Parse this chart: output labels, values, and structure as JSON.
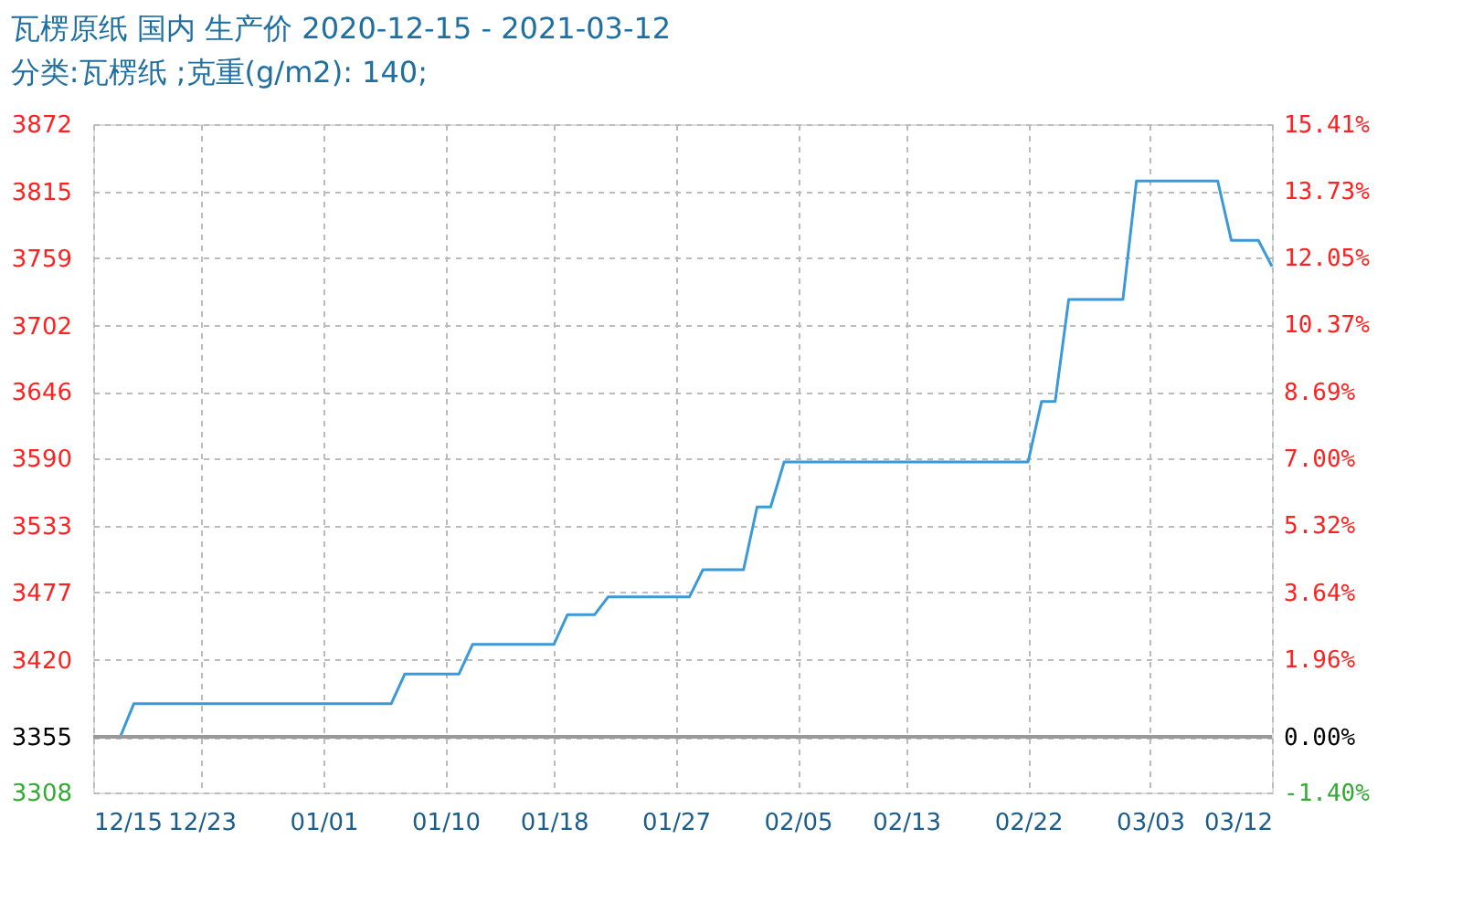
{
  "chart_data": {
    "type": "line",
    "title": "瓦楞原纸 国内 生产价 2020-12-15 - 2021-03-12",
    "subtitle": "分类:瓦楞纸 ;克重(g/m2): 140;",
    "x": [
      "2020-12-15",
      "2020-12-17",
      "2020-12-18",
      "2021-01-06",
      "2021-01-07",
      "2021-01-11",
      "2021-01-12",
      "2021-01-18",
      "2021-01-19",
      "2021-01-21",
      "2021-01-22",
      "2021-01-28",
      "2021-01-29",
      "2021-02-01",
      "2021-02-02",
      "2021-02-03",
      "2021-02-04",
      "2021-02-22",
      "2021-02-23",
      "2021-02-24",
      "2021-02-25",
      "2021-03-01",
      "2021-03-02",
      "2021-03-08",
      "2021-03-09",
      "2021-03-11",
      "2021-03-12"
    ],
    "series": [
      {
        "color": "#3a9ad9",
        "values": [
          3355,
          3355,
          3383,
          3383,
          3408,
          3408,
          3433,
          3433,
          3458,
          3458,
          3473,
          3473,
          3496,
          3496,
          3549,
          3549,
          3587,
          3587,
          3638,
          3638,
          3724,
          3724,
          3824,
          3824,
          3774,
          3774,
          3752
        ]
      }
    ],
    "xlim": [
      "2020-12-15",
      "2021-03-12"
    ],
    "xticks": [
      {
        "value": "2020-12-15",
        "label": "12/15"
      },
      {
        "value": "2020-12-23",
        "label": "12/23"
      },
      {
        "value": "2021-01-01",
        "label": "01/01"
      },
      {
        "value": "2021-01-10",
        "label": "01/10"
      },
      {
        "value": "2021-01-18",
        "label": "01/18"
      },
      {
        "value": "2021-01-27",
        "label": "01/27"
      },
      {
        "value": "2021-02-05",
        "label": "02/05"
      },
      {
        "value": "2021-02-13",
        "label": "02/13"
      },
      {
        "value": "2021-02-22",
        "label": "02/22"
      },
      {
        "value": "2021-03-03",
        "label": "03/03"
      },
      {
        "value": "2021-03-12",
        "label": "03/12"
      }
    ],
    "ylim": [
      3308,
      3872
    ],
    "yticks": [
      3308,
      3355,
      3420,
      3477,
      3533,
      3590,
      3646,
      3702,
      3759,
      3815,
      3872
    ],
    "y2lim": [
      -1.4,
      15.41
    ],
    "y2ticks": [
      {
        "value": -1.4,
        "label": "-1.40%"
      },
      {
        "value": 0,
        "label": "0.00%"
      },
      {
        "value": 1.96,
        "label": "1.96%"
      },
      {
        "value": 3.64,
        "label": "3.64%"
      },
      {
        "value": 5.32,
        "label": "5.32%"
      },
      {
        "value": 7.0,
        "label": "7.00%"
      },
      {
        "value": 8.69,
        "label": "8.69%"
      },
      {
        "value": 10.37,
        "label": "10.37%"
      },
      {
        "value": 12.05,
        "label": "12.05%"
      },
      {
        "value": 13.73,
        "label": "13.73%"
      },
      {
        "value": 15.41,
        "label": "15.41%"
      }
    ],
    "ref_lines": [
      {
        "axis": "y2",
        "value": 0,
        "color": "#999999"
      }
    ],
    "grid": true,
    "marker": "none",
    "line_style": "solid"
  }
}
